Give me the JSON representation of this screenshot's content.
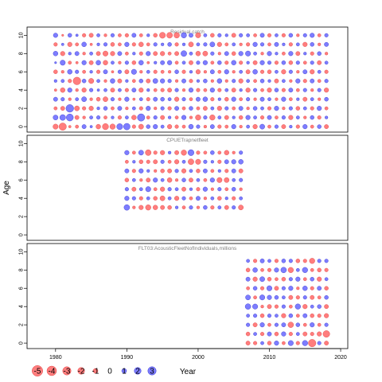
{
  "chart_data": {
    "type": "scatter",
    "subtype": "bubble",
    "xlabel": "Year",
    "ylabel": "Age",
    "xlim": [
      1976,
      2021
    ],
    "x_ticks": [
      1980,
      1990,
      2000,
      2010,
      2020
    ],
    "ylim": [
      -0.6,
      10.9
    ],
    "y_ticks": [
      0,
      2,
      4,
      6,
      8,
      10
    ],
    "colors": {
      "positive": "#6666ff",
      "negative": "#ff6666",
      "edge_positive": "#3333cc",
      "edge_negative": "#e04444"
    },
    "legend": {
      "placement": "bottom",
      "values": [
        -5,
        -4,
        -3,
        -2,
        -1,
        0,
        1,
        2,
        3
      ],
      "labels": [
        "-5",
        "-4",
        "-3",
        "-2",
        "-1",
        "0",
        "1",
        "2",
        "3"
      ]
    },
    "panels": [
      {
        "title": "Residual catch",
        "years": [
          1980,
          2018
        ],
        "ages": [
          0,
          10
        ],
        "residuals": [
          [
            -1.2,
            1.1,
            -0.5,
            0.8,
            -0.3,
            0.4,
            -0.7,
            0.2,
            1.0,
            -0.6,
            0.9
          ],
          [
            -2.4,
            1.5,
            -0.8,
            0.6,
            -1.0,
            0.5,
            -0.4,
            1.2,
            -0.9,
            0.3,
            -0.2
          ],
          [
            -0.3,
            2.2,
            2.6,
            -0.4,
            0.9,
            -0.6,
            1.0,
            -0.5,
            0.4,
            -0.9,
            0.7
          ],
          [
            -0.5,
            -0.8,
            -1.1,
            0.5,
            -0.4,
            -2.6,
            0.6,
            -0.3,
            0.8,
            -0.5,
            0.3
          ],
          [
            0.8,
            -0.4,
            -0.6,
            1.1,
            -0.9,
            0.7,
            -0.5,
            0.9,
            -0.4,
            1.0,
            -0.6
          ],
          [
            0.3,
            0.5,
            -0.9,
            -0.4,
            0.6,
            -1.2,
            0.4,
            -0.8,
            0.5,
            -0.3,
            -0.8
          ],
          [
            -1.0,
            0.6,
            0.4,
            -0.7,
            0.3,
            0.5,
            -0.6,
            1.0,
            -0.8,
            0.4,
            0.5
          ],
          [
            -1.7,
            -0.5,
            0.7,
            -1.1,
            0.5,
            -0.4,
            0.8,
            -1.0,
            -1.2,
            0.6,
            -0.4
          ],
          [
            -1.3,
            0.4,
            -0.5,
            0.6,
            -0.8,
            1.0,
            -0.3,
            0.5,
            -0.9,
            -0.7,
            0.6
          ],
          [
            1.6,
            -0.6,
            0.8,
            -0.4,
            0.5,
            -0.8,
            0.6,
            -0.4,
            0.8,
            -0.5,
            -0.5
          ],
          [
            1.9,
            0.5,
            -0.4,
            0.9,
            -0.6,
            0.4,
            -0.8,
            0.6,
            -0.5,
            0.9,
            -0.6
          ],
          [
            -0.6,
            -1.0,
            0.5,
            -0.3,
            0.8,
            -0.5,
            1.2,
            -0.7,
            0.4,
            -0.6,
            0.8
          ],
          [
            -1.1,
            2.4,
            -0.6,
            0.5,
            -0.9,
            0.7,
            -0.4,
            1.0,
            -0.6,
            -1.0,
            -0.5
          ],
          [
            0.7,
            -0.5,
            0.9,
            -0.6,
            0.4,
            -0.8,
            0.5,
            -0.3,
            0.9,
            -0.5,
            0.4
          ],
          [
            0.9,
            0.6,
            -0.4,
            0.8,
            -0.5,
            1.1,
            -0.6,
            0.4,
            -0.8,
            0.6,
            -0.7
          ],
          [
            0.5,
            -0.8,
            0.6,
            0.7,
            -0.6,
            0.9,
            -0.5,
            0.8,
            -0.9,
            0.4,
            -1.6
          ],
          [
            -0.9,
            0.4,
            -0.6,
            0.5,
            -0.8,
            0.6,
            -0.4,
            0.9,
            -0.5,
            0.7,
            -1.5
          ],
          [
            -0.6,
            -0.5,
            0.8,
            -0.9,
            0.6,
            -0.4,
            0.7,
            -0.5,
            -0.8,
            -0.6,
            -1.4
          ],
          [
            -0.5,
            0.9,
            -0.5,
            0.6,
            -0.4,
            0.8,
            -0.6,
            0.5,
            1.5,
            0.4,
            1.3
          ],
          [
            1.0,
            -0.4,
            0.7,
            -0.5,
            0.9,
            -0.6,
            0.4,
            -0.8,
            0.5,
            -1.1,
            0.8
          ],
          [
            0.6,
            -1.3,
            -0.5,
            0.8,
            -0.6,
            0.4,
            -0.9,
            0.6,
            -1.0,
            0.5,
            -1.2
          ],
          [
            -0.4,
            0.6,
            -0.8,
            1.0,
            -0.5,
            0.7,
            -0.4,
            0.9,
            -1.1,
            0.6,
            0.5
          ],
          [
            0.8,
            -1.3,
            0.5,
            -0.6,
            0.9,
            -0.4,
            0.8,
            -0.5,
            0.6,
            1.1,
            -0.7
          ],
          [
            -0.6,
            0.5,
            -0.9,
            0.4,
            -0.6,
            1.0,
            -0.5,
            0.7,
            -0.4,
            -0.9,
            0.6
          ],
          [
            -0.5,
            -0.8,
            0.6,
            -0.7,
            0.5,
            -0.4,
            0.9,
            -0.6,
            0.8,
            -0.5,
            0.4
          ],
          [
            0.9,
            0.4,
            -0.5,
            0.9,
            -0.8,
            0.6,
            -0.4,
            1.0,
            -0.7,
            0.5,
            -0.8
          ],
          [
            -0.4,
            -0.7,
            0.8,
            -0.5,
            0.4,
            -0.9,
            0.5,
            -0.6,
            0.9,
            -0.4,
            0.6
          ],
          [
            0.5,
            0.9,
            -0.4,
            0.6,
            -0.9,
            0.5,
            -0.8,
            0.4,
            1.2,
            -0.6,
            0.5
          ],
          [
            -0.9,
            0.5,
            0.7,
            -0.4,
            0.6,
            -0.5,
            1.0,
            -0.8,
            0.5,
            0.9,
            -0.5
          ],
          [
            1.1,
            -0.6,
            0.5,
            0.8,
            -0.5,
            0.7,
            -0.6,
            0.9,
            -0.4,
            0.6,
            0.8
          ],
          [
            -0.5,
            0.8,
            -0.6,
            0.5,
            -0.9,
            0.4,
            -0.7,
            0.6,
            0.9,
            -0.5,
            -0.6
          ],
          [
            0.6,
            -0.5,
            0.9,
            -0.4,
            0.7,
            -0.8,
            0.5,
            -0.6,
            0.4,
            0.8,
            0.5
          ],
          [
            -0.8,
            0.6,
            -0.4,
            0.9,
            -0.6,
            0.5,
            -0.9,
            0.7,
            -0.5,
            0.4,
            -0.6
          ],
          [
            0.4,
            -0.9,
            0.6,
            -0.5,
            0.8,
            -0.4,
            0.6,
            -0.7,
            0.9,
            -0.6,
            0.7
          ],
          [
            -0.6,
            0.5,
            -0.7,
            0.4,
            -0.5,
            0.9,
            -0.4,
            0.6,
            -0.8,
            0.5,
            -0.4
          ],
          [
            0.9,
            -0.4,
            0.5,
            -0.8,
            0.6,
            -0.6,
            0.8,
            -0.5,
            0.4,
            -0.9,
            0.6
          ],
          [
            -0.5,
            0.7,
            -0.6,
            0.5,
            -0.4,
            0.8,
            -0.9,
            0.6,
            -0.6,
            0.7,
            0.9
          ],
          [
            0.7,
            -0.6,
            0.9,
            -0.4,
            0.6,
            -0.5,
            0.5,
            -0.8,
            0.7,
            -0.4,
            -0.5
          ],
          [
            -0.8,
            0.4,
            -0.5,
            0.7,
            -0.9,
            0.6,
            -0.6,
            0.5,
            -0.4,
            0.8,
            0.6
          ]
        ]
      },
      {
        "title": "CPUETrapnetfleet",
        "years": [
          1990,
          2006
        ],
        "ages": [
          0,
          10
        ],
        "residuals": [
          [
            0.0,
            0.0,
            0.0,
            1.4,
            0.9,
            0.6,
            -0.7,
            0.8,
            -0.5,
            0.9,
            0.0
          ],
          [
            0.0,
            0.0,
            0.0,
            -0.4,
            0.6,
            -0.8,
            0.5,
            -0.6,
            0.4,
            -0.5,
            0.0
          ],
          [
            0.0,
            0.0,
            0.0,
            -0.9,
            -0.6,
            0.5,
            -0.4,
            0.9,
            -0.7,
            1.1,
            0.0
          ],
          [
            0.0,
            0.0,
            0.0,
            -1.3,
            0.5,
            1.2,
            -0.8,
            0.4,
            -0.6,
            -1.5,
            0.0
          ],
          [
            0.0,
            0.0,
            0.0,
            -1.0,
            -0.7,
            -0.5,
            0.9,
            -0.4,
            -0.8,
            -0.6,
            0.0
          ],
          [
            0.0,
            0.0,
            0.0,
            -0.8,
            -1.1,
            -0.9,
            0.5,
            -0.7,
            0.6,
            -0.9,
            0.0
          ],
          [
            0.0,
            0.0,
            0.0,
            -0.7,
            0.5,
            0.6,
            -1.0,
            -0.8,
            -0.5,
            0.4,
            0.0
          ],
          [
            0.0,
            0.0,
            0.0,
            0.4,
            -0.9,
            0.5,
            -0.4,
            0.6,
            -0.9,
            -0.8,
            0.0
          ],
          [
            0.0,
            0.0,
            0.0,
            -0.5,
            0.6,
            -0.8,
            0.7,
            -0.9,
            0.5,
            -1.3,
            0.0
          ],
          [
            0.0,
            0.0,
            0.0,
            0.6,
            -0.5,
            0.4,
            -0.8,
            0.5,
            -1.5,
            1.6,
            0.0
          ],
          [
            0.0,
            0.0,
            0.0,
            -0.4,
            0.8,
            -0.6,
            0.5,
            -0.7,
            -1.2,
            -0.6,
            0.0
          ],
          [
            0.0,
            0.0,
            0.0,
            0.7,
            -0.4,
            0.9,
            -0.5,
            0.8,
            0.6,
            -0.5,
            0.0
          ],
          [
            0.0,
            0.0,
            0.0,
            -0.6,
            0.5,
            -0.4,
            0.9,
            -0.5,
            0.4,
            0.7,
            0.0
          ],
          [
            0.0,
            0.0,
            0.0,
            0.5,
            -0.7,
            0.6,
            -1.2,
            0.4,
            -0.6,
            -0.5,
            0.0
          ],
          [
            0.0,
            0.0,
            0.0,
            -0.8,
            0.4,
            -0.5,
            -1.1,
            -0.6,
            0.8,
            -1.0,
            0.0
          ],
          [
            0.0,
            0.0,
            0.0,
            0.6,
            -0.6,
            0.7,
            0.5,
            0.8,
            0.9,
            -0.4,
            0.0
          ],
          [
            0.0,
            0.0,
            0.0,
            -1.1,
            0.5,
            -0.4,
            0.6,
            -0.8,
            1.0,
            0.6,
            0.0
          ]
        ]
      },
      {
        "title": "FLT03:AcousticFleetNofIndividuals,millions",
        "years": [
          2007,
          2018
        ],
        "ages": [
          0,
          9
        ],
        "residuals": [
          [
            -0.8,
            -0.7,
            0.6,
            0.5,
            1.4,
            1.1,
            -0.5,
            0.8,
            -0.7,
            0.5
          ],
          [
            -0.6,
            0.5,
            -0.8,
            0.6,
            1.2,
            -0.5,
            0.7,
            -0.9,
            1.0,
            -0.6
          ],
          [
            0.5,
            -0.6,
            0.9,
            -0.7,
            -0.4,
            1.2,
            -0.6,
            1.1,
            -0.5,
            0.8
          ],
          [
            -0.7,
            0.8,
            -0.5,
            0.6,
            -0.8,
            0.9,
            1.2,
            -0.7,
            -0.6,
            0.5
          ],
          [
            0.9,
            -0.7,
            0.6,
            0.5,
            -0.6,
            0.7,
            -0.8,
            -0.5,
            0.9,
            -0.6
          ],
          [
            -0.5,
            0.9,
            0.8,
            -0.9,
            0.6,
            0.5,
            0.6,
            -0.7,
            1.4,
            0.7
          ],
          [
            1.2,
            -0.6,
            -1.4,
            0.7,
            -0.5,
            -0.8,
            0.9,
            0.6,
            -1.3,
            0.6
          ],
          [
            -0.6,
            0.5,
            0.7,
            -0.5,
            1.3,
            -0.6,
            -0.4,
            0.9,
            0.5,
            -0.7
          ],
          [
            1.3,
            -0.8,
            -0.5,
            0.8,
            -0.9,
            0.6,
            1.0,
            -0.5,
            1.3,
            -0.6
          ],
          [
            -2.5,
            -0.6,
            0.9,
            -0.7,
            0.5,
            -0.8,
            -0.6,
            0.7,
            -0.5,
            -1.3
          ],
          [
            0.6,
            -0.9,
            -0.5,
            -0.6,
            0.7,
            -0.5,
            0.8,
            -0.9,
            -0.7,
            0.6
          ],
          [
            -0.8,
            -2.0,
            0.6,
            -0.9,
            -0.8,
            0.7,
            -0.7,
            0.5,
            -0.6,
            0.6
          ]
        ]
      }
    ]
  }
}
